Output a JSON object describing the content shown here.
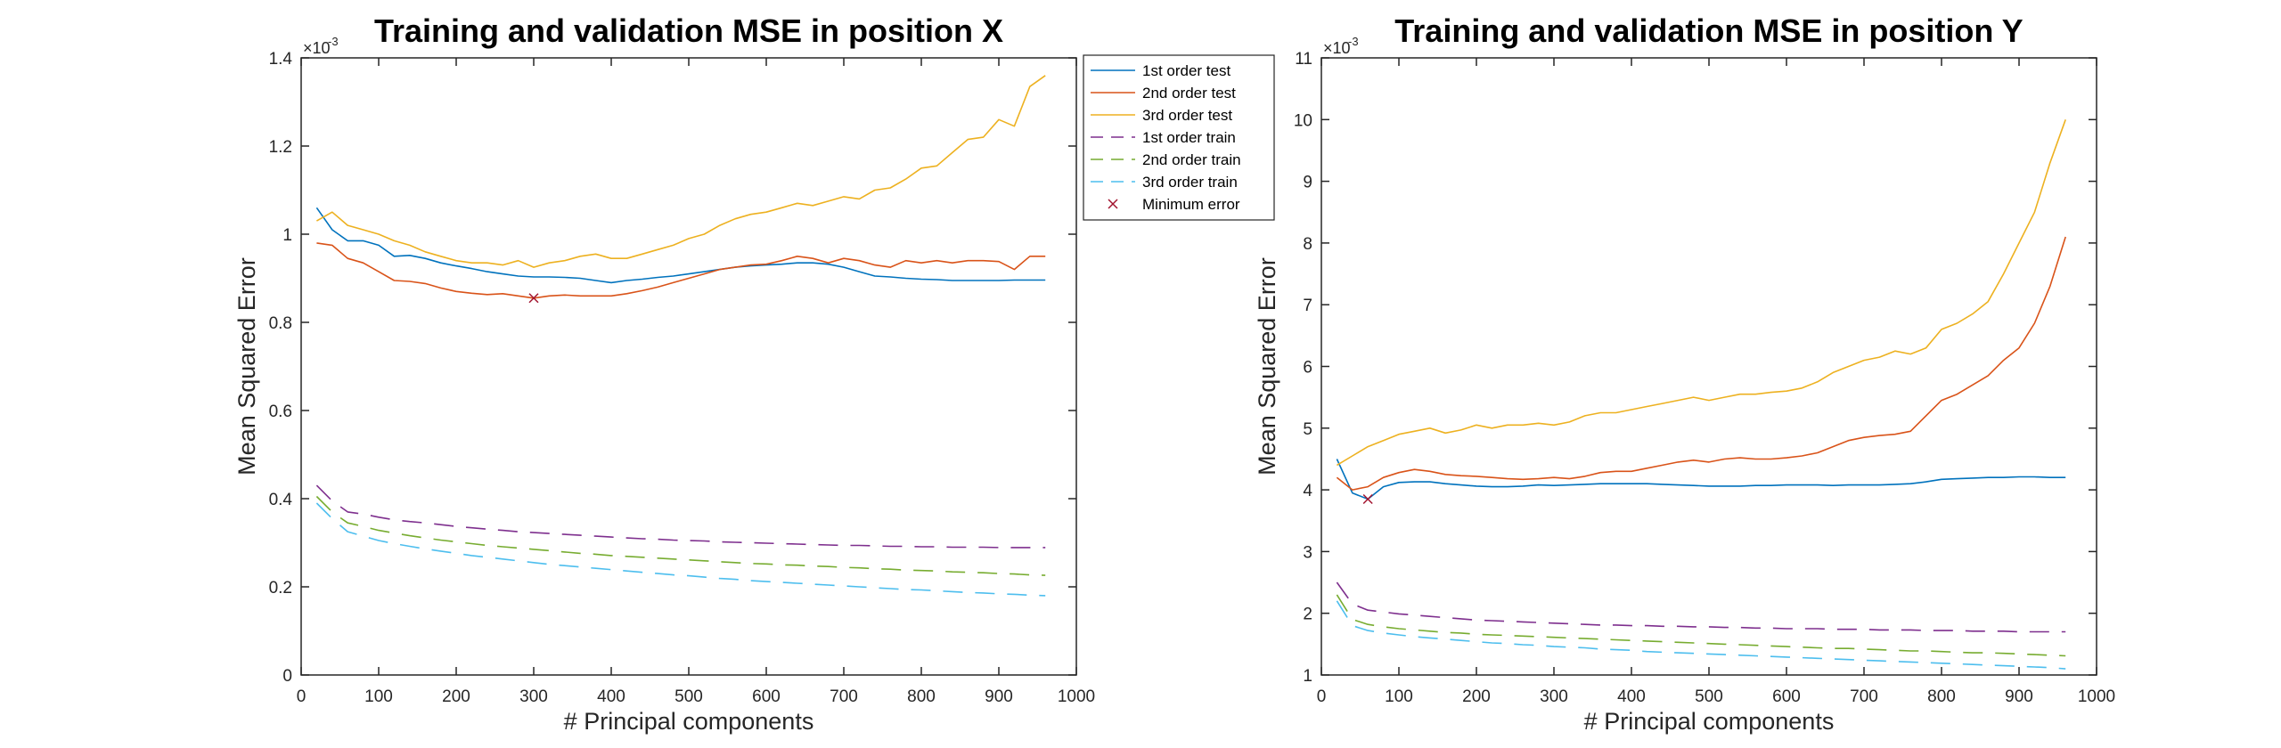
{
  "chart_data": [
    {
      "type": "line",
      "title": "Training and validation MSE in position X",
      "xlabel": "# Principal components",
      "ylabel": "Mean Squared Error",
      "exponent_label": "×10",
      "exponent_power": "-3",
      "xlim": [
        0,
        1000
      ],
      "ylim": [
        0,
        1.4
      ],
      "xticks": [
        "0",
        "100",
        "200",
        "300",
        "400",
        "500",
        "600",
        "700",
        "800",
        "900",
        "1000"
      ],
      "yticks": [
        "0",
        "0.2",
        "0.4",
        "0.6",
        "0.8",
        "1",
        "1.2",
        "1.4"
      ],
      "x": [
        20,
        40,
        60,
        80,
        100,
        120,
        140,
        160,
        180,
        200,
        220,
        240,
        260,
        280,
        300,
        320,
        340,
        360,
        380,
        400,
        420,
        440,
        460,
        480,
        500,
        520,
        540,
        560,
        580,
        600,
        620,
        640,
        660,
        680,
        700,
        720,
        740,
        760,
        780,
        800,
        820,
        840,
        860,
        880,
        900,
        920,
        940,
        960
      ],
      "series": [
        {
          "name": "1st order test",
          "color": "#0072BD",
          "dash": "solid",
          "values": [
            1.06,
            1.01,
            0.985,
            0.985,
            0.975,
            0.95,
            0.952,
            0.945,
            0.935,
            0.928,
            0.922,
            0.915,
            0.91,
            0.905,
            0.903,
            0.903,
            0.902,
            0.9,
            0.895,
            0.89,
            0.895,
            0.898,
            0.902,
            0.905,
            0.91,
            0.915,
            0.92,
            0.925,
            0.928,
            0.93,
            0.932,
            0.935,
            0.935,
            0.932,
            0.925,
            0.915,
            0.905,
            0.903,
            0.9,
            0.898,
            0.897,
            0.895,
            0.895,
            0.895,
            0.895,
            0.896,
            0.896,
            0.896
          ]
        },
        {
          "name": "2nd order test",
          "color": "#D95319",
          "dash": "solid",
          "values": [
            0.98,
            0.975,
            0.945,
            0.935,
            0.915,
            0.895,
            0.893,
            0.888,
            0.878,
            0.87,
            0.866,
            0.863,
            0.865,
            0.86,
            0.855,
            0.86,
            0.862,
            0.86,
            0.86,
            0.86,
            0.865,
            0.872,
            0.88,
            0.89,
            0.9,
            0.91,
            0.92,
            0.925,
            0.93,
            0.932,
            0.94,
            0.95,
            0.945,
            0.935,
            0.945,
            0.94,
            0.93,
            0.925,
            0.94,
            0.935,
            0.94,
            0.935,
            0.94,
            0.94,
            0.938,
            0.92,
            0.95,
            0.95
          ]
        },
        {
          "name": "3rd order test",
          "color": "#EDB120",
          "dash": "solid",
          "values": [
            1.03,
            1.05,
            1.02,
            1.01,
            1.0,
            0.985,
            0.975,
            0.96,
            0.95,
            0.94,
            0.935,
            0.935,
            0.93,
            0.94,
            0.925,
            0.935,
            0.94,
            0.95,
            0.955,
            0.945,
            0.945,
            0.955,
            0.965,
            0.975,
            0.99,
            1.0,
            1.02,
            1.035,
            1.045,
            1.05,
            1.06,
            1.07,
            1.065,
            1.075,
            1.085,
            1.08,
            1.1,
            1.105,
            1.125,
            1.15,
            1.155,
            1.185,
            1.215,
            1.22,
            1.26,
            1.245,
            1.335,
            1.36
          ]
        },
        {
          "name": "1st order train",
          "color": "#7E2F8E",
          "dash": "dashed",
          "values": [
            0.43,
            0.395,
            0.37,
            0.365,
            0.358,
            0.352,
            0.348,
            0.345,
            0.341,
            0.337,
            0.334,
            0.331,
            0.328,
            0.325,
            0.323,
            0.321,
            0.319,
            0.317,
            0.315,
            0.313,
            0.311,
            0.309,
            0.308,
            0.306,
            0.305,
            0.304,
            0.302,
            0.301,
            0.3,
            0.299,
            0.298,
            0.297,
            0.296,
            0.295,
            0.294,
            0.294,
            0.293,
            0.292,
            0.292,
            0.291,
            0.291,
            0.29,
            0.29,
            0.29,
            0.289,
            0.289,
            0.289,
            0.289
          ]
        },
        {
          "name": "2nd order train",
          "color": "#77AC30",
          "dash": "dashed",
          "values": [
            0.405,
            0.37,
            0.345,
            0.337,
            0.328,
            0.322,
            0.316,
            0.311,
            0.306,
            0.302,
            0.298,
            0.294,
            0.291,
            0.288,
            0.285,
            0.282,
            0.279,
            0.276,
            0.274,
            0.271,
            0.269,
            0.267,
            0.265,
            0.263,
            0.261,
            0.259,
            0.257,
            0.255,
            0.253,
            0.252,
            0.25,
            0.249,
            0.247,
            0.246,
            0.244,
            0.243,
            0.241,
            0.24,
            0.238,
            0.237,
            0.236,
            0.234,
            0.233,
            0.232,
            0.23,
            0.229,
            0.227,
            0.226
          ]
        },
        {
          "name": "3rd order train",
          "color": "#4DBEEE",
          "dash": "dashed",
          "values": [
            0.39,
            0.355,
            0.325,
            0.315,
            0.305,
            0.298,
            0.292,
            0.286,
            0.281,
            0.276,
            0.271,
            0.267,
            0.263,
            0.259,
            0.255,
            0.251,
            0.248,
            0.245,
            0.242,
            0.239,
            0.236,
            0.233,
            0.23,
            0.227,
            0.225,
            0.222,
            0.219,
            0.217,
            0.214,
            0.212,
            0.21,
            0.208,
            0.206,
            0.204,
            0.202,
            0.2,
            0.198,
            0.196,
            0.194,
            0.193,
            0.191,
            0.189,
            0.187,
            0.186,
            0.184,
            0.183,
            0.181,
            0.18
          ]
        }
      ],
      "minimum_marker": {
        "name": "Minimum error",
        "color": "#A2142F",
        "x": 300,
        "y": 0.855
      },
      "legend": {
        "location": "outside-top-right",
        "entries": [
          "1st order test",
          "2nd order test",
          "3rd order test",
          "1st order train",
          "2nd order train",
          "3rd order train",
          "Minimum error"
        ]
      }
    },
    {
      "type": "line",
      "title": "Training and validation MSE in position Y",
      "xlabel": "# Principal components",
      "ylabel": "Mean Squared Error",
      "exponent_label": "×10",
      "exponent_power": "-3",
      "xlim": [
        0,
        1000
      ],
      "ylim": [
        1,
        11
      ],
      "xticks": [
        "0",
        "100",
        "200",
        "300",
        "400",
        "500",
        "600",
        "700",
        "800",
        "900",
        "1000"
      ],
      "yticks": [
        "1",
        "2",
        "3",
        "4",
        "5",
        "6",
        "7",
        "8",
        "9",
        "10",
        "11"
      ],
      "x": [
        20,
        40,
        60,
        80,
        100,
        120,
        140,
        160,
        180,
        200,
        220,
        240,
        260,
        280,
        300,
        320,
        340,
        360,
        380,
        400,
        420,
        440,
        460,
        480,
        500,
        520,
        540,
        560,
        580,
        600,
        620,
        640,
        660,
        680,
        700,
        720,
        740,
        760,
        780,
        800,
        820,
        840,
        860,
        880,
        900,
        920,
        940,
        960
      ],
      "series": [
        {
          "name": "1st order test",
          "color": "#0072BD",
          "dash": "solid",
          "values": [
            4.5,
            3.95,
            3.85,
            4.05,
            4.12,
            4.13,
            4.13,
            4.1,
            4.08,
            4.06,
            4.05,
            4.05,
            4.06,
            4.08,
            4.07,
            4.08,
            4.09,
            4.1,
            4.1,
            4.1,
            4.1,
            4.09,
            4.08,
            4.07,
            4.06,
            4.06,
            4.06,
            4.07,
            4.07,
            4.08,
            4.08,
            4.08,
            4.07,
            4.08,
            4.08,
            4.08,
            4.09,
            4.1,
            4.13,
            4.17,
            4.18,
            4.19,
            4.2,
            4.2,
            4.21,
            4.21,
            4.2,
            4.2
          ]
        },
        {
          "name": "2nd order test",
          "color": "#D95319",
          "dash": "solid",
          "values": [
            4.2,
            4.0,
            4.05,
            4.2,
            4.28,
            4.33,
            4.3,
            4.25,
            4.23,
            4.22,
            4.2,
            4.18,
            4.17,
            4.18,
            4.2,
            4.18,
            4.22,
            4.28,
            4.3,
            4.3,
            4.35,
            4.4,
            4.45,
            4.48,
            4.45,
            4.5,
            4.52,
            4.5,
            4.5,
            4.52,
            4.55,
            4.6,
            4.7,
            4.8,
            4.85,
            4.88,
            4.9,
            4.95,
            5.2,
            5.45,
            5.55,
            5.7,
            5.85,
            6.1,
            6.3,
            6.7,
            7.3,
            8.1
          ]
        },
        {
          "name": "3rd order test",
          "color": "#EDB120",
          "dash": "solid",
          "values": [
            4.4,
            4.55,
            4.7,
            4.8,
            4.9,
            4.95,
            5.0,
            4.92,
            4.97,
            5.05,
            5.0,
            5.05,
            5.05,
            5.08,
            5.05,
            5.1,
            5.2,
            5.25,
            5.25,
            5.3,
            5.35,
            5.4,
            5.45,
            5.5,
            5.45,
            5.5,
            5.55,
            5.55,
            5.58,
            5.6,
            5.65,
            5.75,
            5.9,
            6.0,
            6.1,
            6.15,
            6.25,
            6.2,
            6.3,
            6.6,
            6.7,
            6.85,
            7.05,
            7.5,
            8.0,
            8.5,
            9.3,
            10.0
          ]
        },
        {
          "name": "1st order train",
          "color": "#7E2F8E",
          "dash": "dashed",
          "values": [
            2.5,
            2.15,
            2.05,
            2.02,
            1.99,
            1.97,
            1.95,
            1.93,
            1.91,
            1.89,
            1.88,
            1.87,
            1.86,
            1.85,
            1.84,
            1.83,
            1.82,
            1.81,
            1.81,
            1.8,
            1.8,
            1.79,
            1.79,
            1.78,
            1.78,
            1.77,
            1.77,
            1.76,
            1.76,
            1.75,
            1.75,
            1.75,
            1.74,
            1.74,
            1.74,
            1.73,
            1.73,
            1.73,
            1.72,
            1.72,
            1.72,
            1.71,
            1.71,
            1.71,
            1.7,
            1.7,
            1.7,
            1.7
          ]
        },
        {
          "name": "2nd order train",
          "color": "#77AC30",
          "dash": "dashed",
          "values": [
            2.3,
            1.9,
            1.82,
            1.78,
            1.75,
            1.73,
            1.71,
            1.69,
            1.68,
            1.66,
            1.65,
            1.64,
            1.63,
            1.62,
            1.61,
            1.6,
            1.59,
            1.58,
            1.57,
            1.56,
            1.55,
            1.54,
            1.53,
            1.52,
            1.51,
            1.5,
            1.49,
            1.48,
            1.47,
            1.46,
            1.45,
            1.44,
            1.43,
            1.43,
            1.42,
            1.41,
            1.4,
            1.39,
            1.39,
            1.38,
            1.37,
            1.36,
            1.36,
            1.35,
            1.34,
            1.33,
            1.32,
            1.31
          ]
        },
        {
          "name": "3rd order train",
          "color": "#4DBEEE",
          "dash": "dashed",
          "values": [
            2.2,
            1.8,
            1.72,
            1.68,
            1.65,
            1.62,
            1.6,
            1.58,
            1.56,
            1.54,
            1.52,
            1.51,
            1.49,
            1.48,
            1.46,
            1.45,
            1.44,
            1.42,
            1.41,
            1.4,
            1.38,
            1.37,
            1.36,
            1.35,
            1.34,
            1.33,
            1.32,
            1.31,
            1.3,
            1.29,
            1.28,
            1.27,
            1.26,
            1.25,
            1.24,
            1.23,
            1.22,
            1.21,
            1.2,
            1.19,
            1.18,
            1.17,
            1.16,
            1.15,
            1.14,
            1.13,
            1.12,
            1.1
          ]
        }
      ],
      "minimum_marker": {
        "name": "Minimum error",
        "color": "#A2142F",
        "x": 60,
        "y": 3.85
      }
    }
  ]
}
